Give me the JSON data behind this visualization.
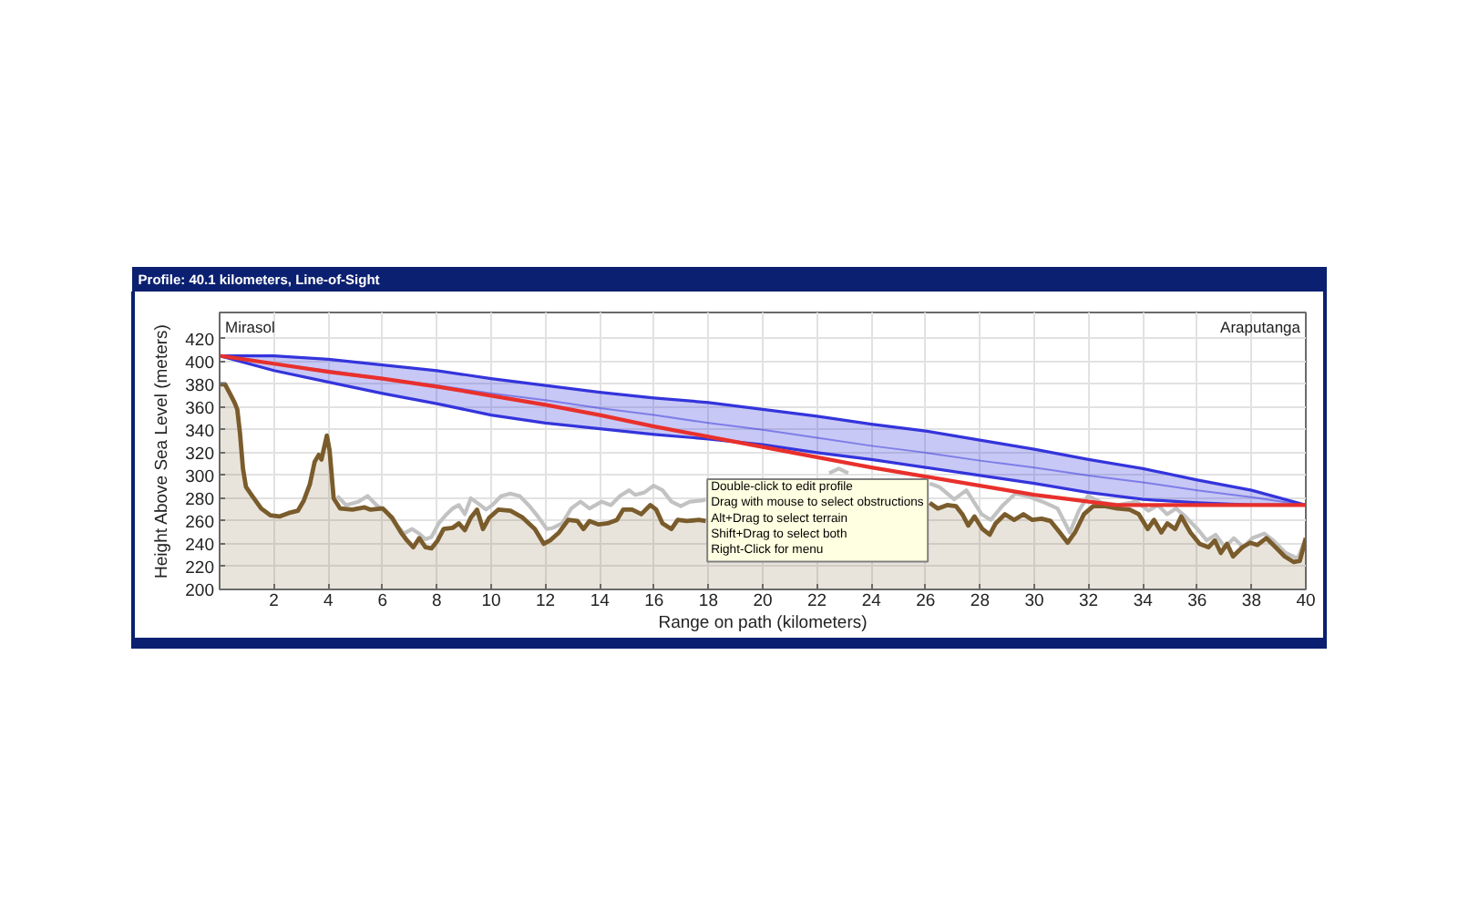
{
  "chart_data": {
    "type": "line",
    "title": "Profile: 40.1 kilometers, Line-of-Sight",
    "xlabel": "Range on path (kilometers)",
    "ylabel": "Height Above Sea Level (meters)",
    "xlim": [
      0,
      40
    ],
    "ylim": [
      200,
      443
    ],
    "xticks": [
      2,
      4,
      6,
      8,
      10,
      12,
      14,
      16,
      18,
      20,
      22,
      24,
      26,
      28,
      30,
      32,
      34,
      36,
      38,
      40
    ],
    "yticks": [
      200,
      220,
      240,
      260,
      280,
      300,
      320,
      340,
      360,
      380,
      400,
      420
    ],
    "grid": true,
    "annotations": [
      "Mirasol",
      "Araputanga",
      "Double-click to edit profile",
      "Drag with mouse to select obstructions",
      "Alt+Drag to select terrain",
      "Shift+Drag to select both",
      "Right-Click for menu"
    ],
    "series": [
      {
        "color": "#3434dc",
        "x": [
          0,
          2,
          4,
          6,
          8,
          10,
          12,
          14,
          16,
          18,
          20,
          22,
          24,
          26,
          28,
          30,
          32,
          34,
          36,
          38,
          40
        ],
        "values": [
          405,
          398,
          392,
          385,
          379,
          372,
          366,
          359,
          353,
          346,
          340,
          333,
          326,
          320,
          313,
          307,
          300,
          294,
          287,
          281,
          274
        ],
        "upper": [
          405,
          405,
          402,
          397,
          392,
          385,
          379,
          373,
          368,
          364,
          358,
          352,
          345,
          339,
          331,
          323,
          314,
          306,
          296,
          287,
          274
        ],
        "lower": [
          405,
          392,
          382,
          372,
          363,
          353,
          346,
          341,
          336,
          332,
          327,
          320,
          314,
          307,
          300,
          293,
          285,
          279,
          276,
          274,
          274
        ]
      },
      {
        "color": "#c2c2c2",
        "x": [
          4.33,
          4.66,
          5.11,
          5.45,
          5.78,
          6.12,
          6.46,
          6.79,
          7.09,
          7.35,
          7.58,
          7.8,
          8.07,
          8.36,
          8.58,
          8.81,
          9.03,
          9.25,
          9.54,
          9.81,
          10.04,
          10.37,
          10.71,
          11.05,
          11.38,
          11.72,
          12.05,
          12.28,
          12.62,
          12.95,
          13.29,
          13.62,
          13.85,
          14.07,
          14.41,
          14.74,
          15.08,
          15.3,
          15.64,
          15.98,
          16.31,
          16.64,
          16.98,
          17.32,
          17.76,
          17.9,
          22,
          26.15,
          26.5,
          27.05,
          27.5,
          28.06,
          28.4,
          28.85,
          29.3,
          29.74,
          30.3,
          30.86,
          31.31,
          31.64,
          31.98,
          32.5,
          33.1,
          33.77,
          34.2,
          34.55,
          34.89,
          35.22,
          35.56,
          36.01,
          36.35,
          36.68,
          37.02,
          37.35,
          37.7,
          38.03,
          38.47,
          38.8,
          39.26,
          39.7,
          40
        ],
        "values": [
          282,
          274,
          277,
          282,
          274,
          269,
          258,
          249,
          253,
          249,
          244,
          246,
          258,
          266,
          271,
          274,
          266,
          280,
          275,
          270,
          274,
          282,
          284,
          282,
          274,
          264,
          253,
          254,
          258,
          271,
          277,
          271,
          274,
          277,
          274,
          282,
          287,
          283,
          285,
          291,
          287,
          277,
          273,
          277,
          278,
          279,
          null,
          293,
          290,
          279,
          287,
          266,
          261,
          274,
          284,
          282,
          277,
          271,
          250,
          269,
          282,
          276,
          274,
          277,
          269,
          274,
          266,
          271,
          264,
          253,
          243,
          248,
          237,
          245,
          237,
          245,
          249,
          243,
          232,
          227,
          245
        ]
      },
      {
        "color": "#c2c2c2",
        "x": [
          22.45,
          22.8,
          23.15
        ],
        "values": [
          302,
          306,
          302
        ]
      },
      {
        "type": "area",
        "color": "#7a5c2c",
        "x": [
          0,
          0.2,
          0.4,
          0.55,
          0.65,
          0.75,
          0.86,
          0.97,
          1.2,
          1.53,
          1.87,
          2.2,
          2.54,
          2.88,
          3.1,
          3.32,
          3.5,
          3.65,
          3.75,
          3.95,
          4.05,
          4.2,
          4.44,
          4.89,
          5.34,
          5.56,
          6.01,
          6.35,
          6.68,
          6.9,
          7.13,
          7.35,
          7.58,
          7.8,
          8.03,
          8.25,
          8.58,
          8.81,
          9.03,
          9.25,
          9.48,
          9.7,
          9.93,
          10.26,
          10.71,
          11.16,
          11.61,
          11.94,
          12.17,
          12.5,
          12.84,
          13.18,
          13.4,
          13.62,
          13.96,
          14.29,
          14.63,
          14.86,
          15.19,
          15.53,
          15.86,
          16.08,
          16.31,
          16.64,
          16.87,
          17.21,
          17.65,
          17.9,
          22,
          26.15,
          26.45,
          26.79,
          27.12,
          27.35,
          27.57,
          27.8,
          28.09,
          28.36,
          28.58,
          28.92,
          29.26,
          29.6,
          29.93,
          30.27,
          30.6,
          30.94,
          31.23,
          31.5,
          31.83,
          32.17,
          32.62,
          33.06,
          33.51,
          33.85,
          34.18,
          34.41,
          34.68,
          34.9,
          35.19,
          35.41,
          35.75,
          36.09,
          36.42,
          36.65,
          36.87,
          37.1,
          37.32,
          37.66,
          37.95,
          38.22,
          38.55,
          38.89,
          39.22,
          39.56,
          39.78,
          40
        ],
        "values": [
          380,
          380,
          371,
          364,
          358,
          337,
          306,
          290,
          282,
          271,
          265,
          264,
          267,
          269,
          278,
          292,
          312,
          318,
          314,
          335,
          322,
          280,
          271,
          270,
          272,
          270,
          271,
          263,
          250,
          243,
          237,
          245,
          237,
          236,
          243,
          253,
          254,
          258,
          252,
          263,
          270,
          253,
          263,
          270,
          269,
          263,
          253,
          240,
          243,
          250,
          261,
          260,
          253,
          260,
          257,
          258,
          261,
          270,
          270,
          266,
          274,
          270,
          258,
          253,
          261,
          260,
          261,
          260,
          null,
          276,
          271,
          274,
          273,
          266,
          256,
          264,
          253,
          248,
          258,
          266,
          261,
          266,
          261,
          262,
          260,
          250,
          241,
          250,
          266,
          273,
          273,
          271,
          270,
          266,
          253,
          261,
          250,
          258,
          253,
          264,
          250,
          240,
          237,
          243,
          232,
          240,
          229,
          237,
          241,
          239,
          245,
          237,
          229,
          224,
          225,
          245
        ]
      },
      {
        "color": "#e8302c",
        "x": [
          0,
          2,
          4,
          6,
          8,
          10,
          12,
          14,
          16,
          18,
          20,
          22,
          24,
          26,
          28,
          30,
          32,
          33,
          34,
          36,
          38,
          40
        ],
        "values": [
          405,
          398,
          391,
          385,
          378,
          370,
          362,
          353,
          343,
          334,
          325,
          316,
          307,
          299,
          291,
          283,
          277,
          274,
          274,
          274,
          274,
          274
        ]
      }
    ]
  }
}
